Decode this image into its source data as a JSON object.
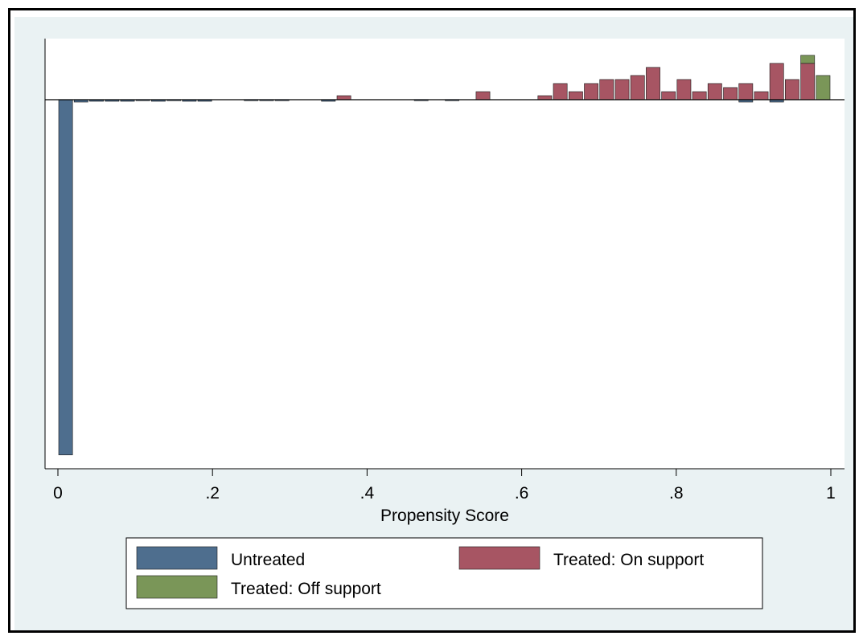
{
  "chart_data": {
    "type": "bar",
    "title": "",
    "xlabel": "Propensity Score",
    "ylabel": "",
    "xlim": [
      0,
      1
    ],
    "x_ticks": [
      {
        "value": 0,
        "label": "0"
      },
      {
        "value": 0.2,
        "label": ".2"
      },
      {
        "value": 0.4,
        "label": ".4"
      },
      {
        "value": 0.6,
        "label": ".6"
      },
      {
        "value": 0.8,
        "label": ".8"
      },
      {
        "value": 1,
        "label": "1"
      }
    ],
    "bin_width": 0.02,
    "y_axis_labels_shown": false,
    "grid": false,
    "legend_placement": "bottom",
    "series": [
      {
        "name": "Untreated",
        "color": "#4e6e8e",
        "direction": "down",
        "bins": [
          {
            "x": 0.0,
            "height": 88.0
          },
          {
            "x": 0.02,
            "height": 0.6
          },
          {
            "x": 0.04,
            "height": 0.4
          },
          {
            "x": 0.06,
            "height": 0.4
          },
          {
            "x": 0.08,
            "height": 0.4
          },
          {
            "x": 0.1,
            "height": 0.2
          },
          {
            "x": 0.12,
            "height": 0.4
          },
          {
            "x": 0.14,
            "height": 0.2
          },
          {
            "x": 0.16,
            "height": 0.4
          },
          {
            "x": 0.18,
            "height": 0.4
          },
          {
            "x": 0.24,
            "height": 0.2
          },
          {
            "x": 0.26,
            "height": 0.2
          },
          {
            "x": 0.28,
            "height": 0.2
          },
          {
            "x": 0.34,
            "height": 0.4
          },
          {
            "x": 0.46,
            "height": 0.2
          },
          {
            "x": 0.5,
            "height": 0.2
          },
          {
            "x": 0.88,
            "height": 0.6
          },
          {
            "x": 0.92,
            "height": 0.6
          }
        ]
      },
      {
        "name": "Treated: On support",
        "color": "#a75563",
        "direction": "up",
        "bins": [
          {
            "x": 0.36,
            "height": 1.0
          },
          {
            "x": 0.54,
            "height": 2.0
          },
          {
            "x": 0.62,
            "height": 1.0
          },
          {
            "x": 0.64,
            "height": 4.0
          },
          {
            "x": 0.66,
            "height": 2.0
          },
          {
            "x": 0.68,
            "height": 4.0
          },
          {
            "x": 0.7,
            "height": 5.0
          },
          {
            "x": 0.72,
            "height": 5.0
          },
          {
            "x": 0.74,
            "height": 6.0
          },
          {
            "x": 0.76,
            "height": 8.0
          },
          {
            "x": 0.78,
            "height": 2.0
          },
          {
            "x": 0.8,
            "height": 5.0
          },
          {
            "x": 0.82,
            "height": 2.0
          },
          {
            "x": 0.84,
            "height": 4.0
          },
          {
            "x": 0.86,
            "height": 3.0
          },
          {
            "x": 0.88,
            "height": 4.0
          },
          {
            "x": 0.9,
            "height": 2.0
          },
          {
            "x": 0.92,
            "height": 9.0
          },
          {
            "x": 0.94,
            "height": 5.0
          },
          {
            "x": 0.96,
            "height": 9.0
          }
        ]
      },
      {
        "name": "Treated: Off support",
        "color": "#7a9658",
        "direction": "up",
        "bins": [
          {
            "x": 0.96,
            "height": 2.0,
            "stacked_on": "Treated: On support"
          },
          {
            "x": 0.98,
            "height": 6.0
          }
        ]
      }
    ],
    "legend": [
      {
        "label": "Untreated",
        "color": "#4e6e8e"
      },
      {
        "label": "Treated: On support",
        "color": "#a75563"
      },
      {
        "label": "Treated: Off support",
        "color": "#7a9658"
      }
    ]
  }
}
